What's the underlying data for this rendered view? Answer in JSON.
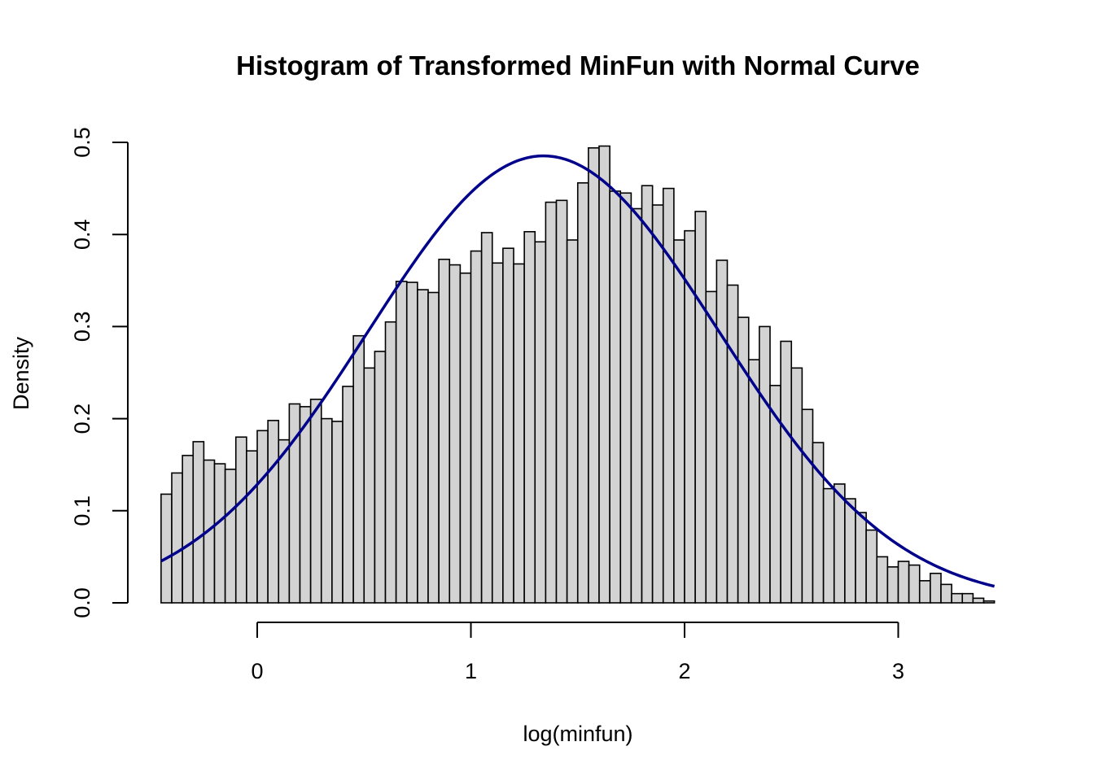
{
  "chart_data": {
    "type": "bar",
    "subtype": "histogram",
    "title": "Histogram of Transformed MinFun with Normal Curve",
    "xlabel": "log(minfun)",
    "ylabel": "Density",
    "xlim": [
      -0.45,
      3.45
    ],
    "ylim": [
      0,
      0.5
    ],
    "x_ticks": [
      0,
      1,
      2,
      3
    ],
    "y_ticks": [
      0.0,
      0.1,
      0.2,
      0.3,
      0.4,
      0.5
    ],
    "y_tick_labels": [
      "0.0",
      "0.1",
      "0.2",
      "0.3",
      "0.4",
      "0.5"
    ],
    "grid": false,
    "legend": "none",
    "bin_start": -0.45,
    "bin_width": 0.05,
    "densities": [
      0.118,
      0.141,
      0.16,
      0.175,
      0.155,
      0.151,
      0.145,
      0.18,
      0.165,
      0.187,
      0.198,
      0.177,
      0.216,
      0.213,
      0.221,
      0.2,
      0.197,
      0.235,
      0.29,
      0.255,
      0.273,
      0.305,
      0.349,
      0.348,
      0.34,
      0.337,
      0.373,
      0.367,
      0.358,
      0.382,
      0.402,
      0.369,
      0.385,
      0.368,
      0.403,
      0.392,
      0.435,
      0.437,
      0.394,
      0.456,
      0.494,
      0.496,
      0.447,
      0.445,
      0.428,
      0.453,
      0.432,
      0.45,
      0.394,
      0.404,
      0.425,
      0.338,
      0.372,
      0.345,
      0.31,
      0.264,
      0.3,
      0.236,
      0.284,
      0.255,
      0.21,
      0.174,
      0.124,
      0.129,
      0.113,
      0.098,
      0.079,
      0.05,
      0.039,
      0.045,
      0.041,
      0.024,
      0.032,
      0.02,
      0.01,
      0.01,
      0.005,
      0.002
    ],
    "normal_curve": {
      "mean": 1.34,
      "sd": 0.822,
      "color": "#00008b"
    },
    "bar_fill": "#d3d3d3",
    "bar_border": "#000000"
  }
}
